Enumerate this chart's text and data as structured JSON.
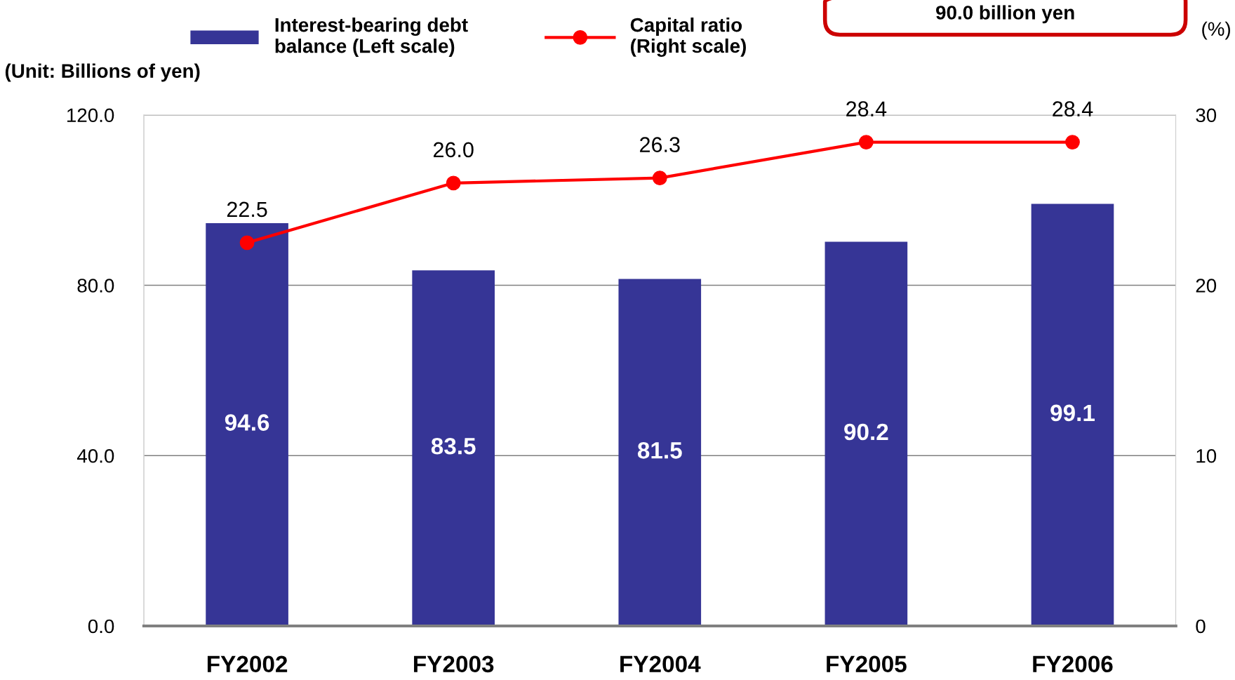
{
  "chart_data": {
    "type": "bar",
    "ylabel": "(Unit: Billions of yen)",
    "y2label": "(%)",
    "categories": [
      "FY2002",
      "FY2003",
      "FY2004",
      "FY2005",
      "FY2006"
    ],
    "series": [
      {
        "name": "Interest-bearing debt\nbalance (Left scale)",
        "color": "#363596",
        "values": [
          94.6,
          83.5,
          81.5,
          90.2,
          99.1
        ],
        "value_labels": [
          "94.6",
          "83.5",
          "81.5",
          "90.2",
          "99.1"
        ]
      },
      {
        "name": "Capital ratio\n(Right scale)",
        "type": "line",
        "axis": "y2",
        "color": "#ff0000",
        "values": [
          22.5,
          26.0,
          26.3,
          28.4,
          28.4
        ],
        "value_labels": [
          "22.5",
          "26.0",
          "26.3",
          "28.4",
          "28.4"
        ]
      }
    ],
    "ylim": [
      0,
      120
    ],
    "yticks": [
      {
        "value": 0,
        "label": "0.0"
      },
      {
        "value": 40,
        "label": "40.0"
      },
      {
        "value": 80,
        "label": "80.0"
      },
      {
        "value": 120,
        "label": "120.0"
      }
    ],
    "y2lim": [
      0,
      30
    ],
    "y2ticks": [
      0,
      10,
      20,
      30
    ],
    "grid": "y",
    "legend": "top",
    "marker": "circle",
    "line_style": "solid",
    "annotations": [
      "90.0 billion yen"
    ]
  }
}
